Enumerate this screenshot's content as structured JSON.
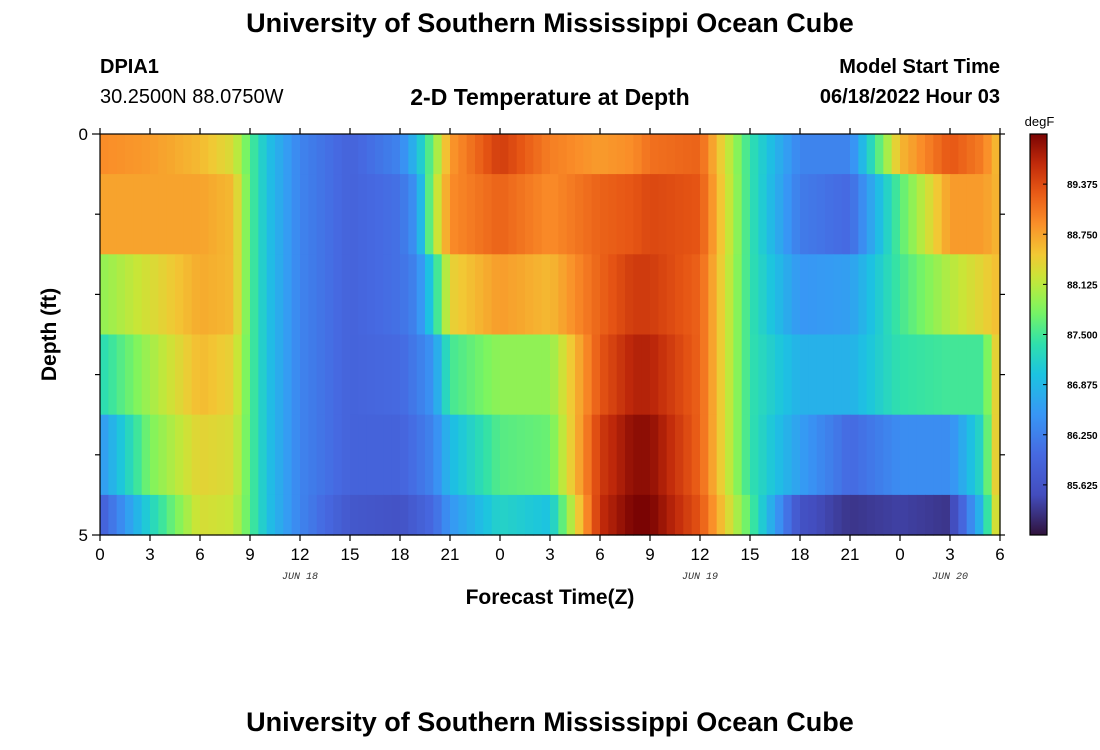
{
  "header": {
    "title": "University of Southern Mississippi Ocean Cube",
    "station_id": "DPIA1",
    "station_coords": "30.2500N  88.0750W",
    "chart_title": "2-D Temperature at Depth",
    "model_start_label": "Model Start Time",
    "model_start_value": "06/18/2022 Hour 03"
  },
  "footer": {
    "title": "University of Southern Mississippi Ocean Cube"
  },
  "chart_data": {
    "type": "heatmap",
    "title": "2-D Temperature at Depth",
    "xlabel": "Forecast Time(Z)",
    "ylabel": "Depth (ft)",
    "xlim": [
      0,
      54
    ],
    "ylim": [
      0,
      5
    ],
    "x_tick_labels": [
      "0",
      "3",
      "6",
      "9",
      "12",
      "15",
      "18",
      "21",
      "0",
      "3",
      "6",
      "9",
      "12",
      "15",
      "18",
      "21",
      "0",
      "3",
      "6"
    ],
    "y_tick_labels": [
      "0",
      "5"
    ],
    "date_labels": [
      {
        "label": "JUN 18",
        "hour": 12
      },
      {
        "label": "JUN 19",
        "hour": 36
      },
      {
        "label": "JUN 20",
        "hour": 51
      }
    ],
    "colorbar": {
      "unit": "degF",
      "min": 85.0,
      "max": 90.0,
      "ticks": [
        "89.375",
        "88.750",
        "88.125",
        "87.500",
        "86.875",
        "86.250",
        "85.625"
      ],
      "tick_values": [
        89.375,
        88.75,
        88.125,
        87.5,
        86.875,
        86.25,
        85.625
      ]
    },
    "depth_layers": [
      0.25,
      1.0,
      2.0,
      3.0,
      4.0,
      4.75
    ],
    "layer_bounds": [
      0,
      0.5,
      1.5,
      2.5,
      3.5,
      4.5,
      5
    ],
    "time_step_hours": 0.5,
    "keyframes": {
      "hours": [
        0,
        3,
        6,
        8,
        9,
        10,
        12,
        15,
        18,
        19,
        20,
        21,
        24,
        27,
        30,
        32,
        33,
        36,
        39,
        42,
        45,
        48,
        51,
        53,
        54
      ],
      "layers": [
        [
          88.9,
          88.8,
          88.6,
          88.3,
          87.6,
          87.0,
          86.3,
          85.9,
          86.3,
          86.9,
          87.8,
          88.8,
          89.5,
          89.0,
          88.8,
          88.9,
          89.1,
          89.2,
          87.4,
          86.3,
          86.3,
          88.6,
          89.3,
          89.0,
          88.5
        ],
        [
          88.75,
          88.75,
          88.75,
          88.6,
          87.6,
          87.0,
          86.3,
          85.9,
          86.1,
          86.5,
          88.0,
          88.9,
          89.2,
          88.9,
          89.2,
          89.3,
          89.4,
          89.3,
          87.4,
          86.2,
          86.0,
          87.6,
          88.8,
          88.8,
          88.6
        ],
        [
          87.9,
          88.3,
          88.7,
          88.6,
          87.6,
          87.0,
          86.3,
          85.9,
          86.1,
          86.3,
          87.2,
          88.4,
          88.8,
          88.6,
          89.2,
          89.5,
          89.5,
          89.2,
          87.4,
          86.5,
          86.6,
          87.5,
          88.1,
          88.4,
          88.6
        ],
        [
          87.3,
          88.0,
          88.6,
          88.4,
          87.6,
          87.0,
          86.3,
          85.9,
          86.0,
          86.2,
          86.5,
          87.5,
          87.9,
          87.9,
          89.3,
          89.7,
          89.7,
          89.2,
          87.4,
          86.8,
          86.8,
          87.4,
          87.5,
          87.5,
          88.7
        ],
        [
          86.5,
          87.8,
          88.4,
          88.3,
          87.6,
          87.0,
          86.3,
          85.9,
          85.9,
          86.1,
          86.3,
          86.9,
          87.6,
          87.7,
          89.5,
          89.9,
          89.9,
          89.2,
          87.4,
          86.6,
          86.0,
          86.4,
          86.4,
          87.3,
          88.8
        ],
        [
          85.8,
          87.2,
          88.3,
          88.2,
          87.6,
          87.0,
          86.3,
          85.7,
          85.6,
          85.8,
          86.0,
          86.5,
          87.2,
          87.0,
          89.6,
          90.0,
          90.0,
          89.3,
          87.6,
          85.6,
          85.3,
          85.4,
          85.3,
          87.0,
          88.7
        ]
      ]
    },
    "grid": false,
    "colorbar_placement": "right"
  }
}
